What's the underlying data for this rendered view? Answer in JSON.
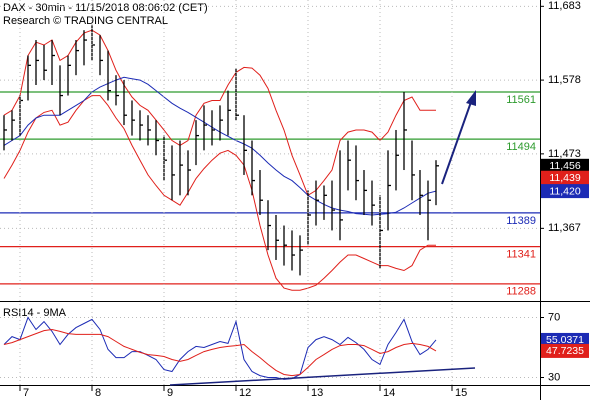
{
  "chart_data": [
    {
      "type": "hlc",
      "title": "DAX - 30min - 11/15/2018 08:06:02 (CET)",
      "subtitle": "Research © TRADING CENTRAL",
      "xlim": [
        -0.5,
        67
      ],
      "ylim": [
        11265,
        11692
      ],
      "yticks": [
        {
          "value": 11683,
          "label": "11,683"
        },
        {
          "value": 11578,
          "label": "11,578"
        },
        {
          "value": 11473,
          "label": "11,473"
        },
        {
          "value": 11367,
          "label": "11,367"
        }
      ],
      "grid": true,
      "color": "#000000",
      "high": [
        11528,
        11535,
        11556,
        11613,
        11635,
        11628,
        11635,
        11599,
        11613,
        11635,
        11649,
        11656,
        11642,
        11620,
        11585,
        11578,
        11549,
        11535,
        11528,
        11521,
        11499,
        11485,
        11492,
        11478,
        11521,
        11542,
        11535,
        11542,
        11563,
        11595,
        11528,
        11492,
        11450,
        11407,
        11386,
        11371,
        11364,
        11357,
        11421,
        11435,
        11428,
        11435,
        11478,
        11492,
        11485,
        11450,
        11435,
        11414,
        11478,
        11507,
        11561,
        11492,
        11450,
        11435,
        11464
      ],
      "low": [
        11478,
        11492,
        11499,
        11549,
        11571,
        11578,
        11571,
        11528,
        11556,
        11585,
        11599,
        11606,
        11585,
        11549,
        11542,
        11514,
        11499,
        11492,
        11485,
        11471,
        11435,
        11407,
        11414,
        11414,
        11457,
        11478,
        11485,
        11492,
        11499,
        11521,
        11443,
        11414,
        11386,
        11336,
        11322,
        11314,
        11307,
        11300,
        11343,
        11371,
        11379,
        11364,
        11350,
        11421,
        11407,
        11386,
        11371,
        11310,
        11364,
        11421,
        11450,
        11407,
        11386,
        11350,
        11400
      ],
      "close": [
        11507,
        11521,
        11549,
        11599,
        11606,
        11592,
        11613,
        11556,
        11599,
        11620,
        11635,
        11628,
        11606,
        11563,
        11556,
        11528,
        11521,
        11514,
        11507,
        11492,
        11464,
        11443,
        11457,
        11450,
        11499,
        11514,
        11507,
        11521,
        11535,
        11528,
        11478,
        11435,
        11407,
        11371,
        11350,
        11343,
        11329,
        11336,
        11386,
        11407,
        11414,
        11393,
        11379,
        11464,
        11435,
        11421,
        11400,
        11364,
        11428,
        11471,
        11507,
        11443,
        11414,
        11407,
        11456
      ],
      "lines": [
        {
          "color": "#e0201b",
          "values": [
            11528,
            11535,
            11556,
            11613,
            11632,
            11628,
            11635,
            11606,
            11613,
            11632,
            11645,
            11649,
            11642,
            11620,
            11592,
            11571,
            11554,
            11542,
            11535,
            11521,
            11507,
            11492,
            11485,
            11492,
            11528,
            11545,
            11549,
            11549,
            11571,
            11589,
            11596,
            11595,
            11585,
            11566,
            11535,
            11507,
            11471,
            11443,
            11414,
            11421,
            11435,
            11450,
            11492,
            11504,
            11507,
            11507,
            11504,
            11492,
            11504,
            11528,
            11549,
            11554,
            11535,
            11535,
            11535
          ]
        },
        {
          "color": "#e0201b",
          "values": [
            11438,
            11457,
            11478,
            11504,
            11524,
            11532,
            11535,
            11514,
            11518,
            11535,
            11549,
            11556,
            11556,
            11542,
            11524,
            11509,
            11485,
            11464,
            11443,
            11428,
            11414,
            11407,
            11400,
            11418,
            11438,
            11452,
            11464,
            11474,
            11478,
            11471,
            11457,
            11421,
            11371,
            11329,
            11296,
            11282,
            11279,
            11279,
            11282,
            11286,
            11296,
            11307,
            11319,
            11329,
            11329,
            11324,
            11319,
            11314,
            11314,
            11310,
            11307,
            11314,
            11336,
            11343,
            11343
          ]
        },
        {
          "color": "#1c2bb5",
          "values": [
            11485,
            11492,
            11499,
            11514,
            11524,
            11528,
            11528,
            11528,
            11535,
            11542,
            11549,
            11561,
            11568,
            11573,
            11578,
            11582,
            11580,
            11578,
            11572,
            11563,
            11554,
            11545,
            11538,
            11532,
            11525,
            11518,
            11511,
            11504,
            11498,
            11492,
            11487,
            11481,
            11471,
            11460,
            11450,
            11441,
            11435,
            11425,
            11414,
            11407,
            11401,
            11396,
            11393,
            11391,
            11388,
            11387,
            11386,
            11387,
            11388,
            11390,
            11396,
            11403,
            11410,
            11417,
            11420
          ]
        }
      ],
      "levels": [
        {
          "value": 11561,
          "color": "#2e9b2e"
        },
        {
          "value": 11494,
          "color": "#2e9b2e"
        },
        {
          "value": 11389,
          "color": "#1c2bb5"
        },
        {
          "value": 11341,
          "color": "#e0201b"
        },
        {
          "value": 11288,
          "color": "#e0201b"
        }
      ],
      "last_labels": [
        {
          "value": 11456,
          "label": "11,456",
          "color": "#000000"
        },
        {
          "value": 11439,
          "label": "11,439",
          "color": "#e0201b"
        },
        {
          "value": 11420,
          "label": "11,420",
          "color": "#1c2bb5"
        }
      ]
    },
    {
      "type": "line",
      "title": "RSI14 - 9MA",
      "xlim": [
        -0.5,
        67
      ],
      "ylim": [
        25,
        79
      ],
      "yticks": [
        30,
        70
      ],
      "xticks": [
        {
          "value": 2,
          "label": "7"
        },
        {
          "value": 11,
          "label": "8"
        },
        {
          "value": 20,
          "label": "9"
        },
        {
          "value": 29,
          "label": "12"
        },
        {
          "value": 38,
          "label": "13"
        },
        {
          "value": 47,
          "label": "14"
        },
        {
          "value": 56,
          "label": "15"
        }
      ],
      "grid": true,
      "lines": [
        {
          "color": "#1c2bb5",
          "values": [
            52,
            57.3,
            55.3,
            70,
            62,
            67.3,
            60.7,
            52,
            58.7,
            63.3,
            66,
            68.7,
            62,
            48.7,
            43.3,
            43.3,
            47.3,
            47.3,
            44.7,
            42,
            35.3,
            34,
            42,
            47.3,
            50.7,
            50,
            52,
            54,
            52.7,
            67.3,
            42,
            34,
            31.3,
            30,
            30,
            28.7,
            29.3,
            32,
            50,
            55.3,
            57.3,
            55.3,
            52,
            56.7,
            53.3,
            48.7,
            42,
            38.7,
            52,
            60,
            68.7,
            54,
            45.3,
            48.7,
            55.0371
          ]
        },
        {
          "color": "#e0201b",
          "values": [
            52,
            53.3,
            55.3,
            57.3,
            59.3,
            61.3,
            62,
            60.7,
            59.3,
            58.7,
            58.7,
            58.7,
            58.7,
            57.3,
            54,
            50.7,
            48.7,
            46.7,
            45.3,
            44.7,
            44,
            42,
            40.7,
            42,
            44.7,
            47.3,
            48.7,
            50,
            50.7,
            51.3,
            52,
            47.3,
            43.3,
            38.7,
            34.7,
            32,
            31.3,
            32,
            36.7,
            42,
            45.3,
            48.7,
            51.3,
            52,
            52,
            51.3,
            48.7,
            46,
            47.3,
            50,
            52,
            52.7,
            52,
            50.7,
            47.7235
          ]
        }
      ],
      "last_labels": [
        {
          "value": 55.0371,
          "color": "#1c2bb5"
        },
        {
          "value": 47.7235,
          "color": "#e0201b"
        }
      ]
    }
  ]
}
